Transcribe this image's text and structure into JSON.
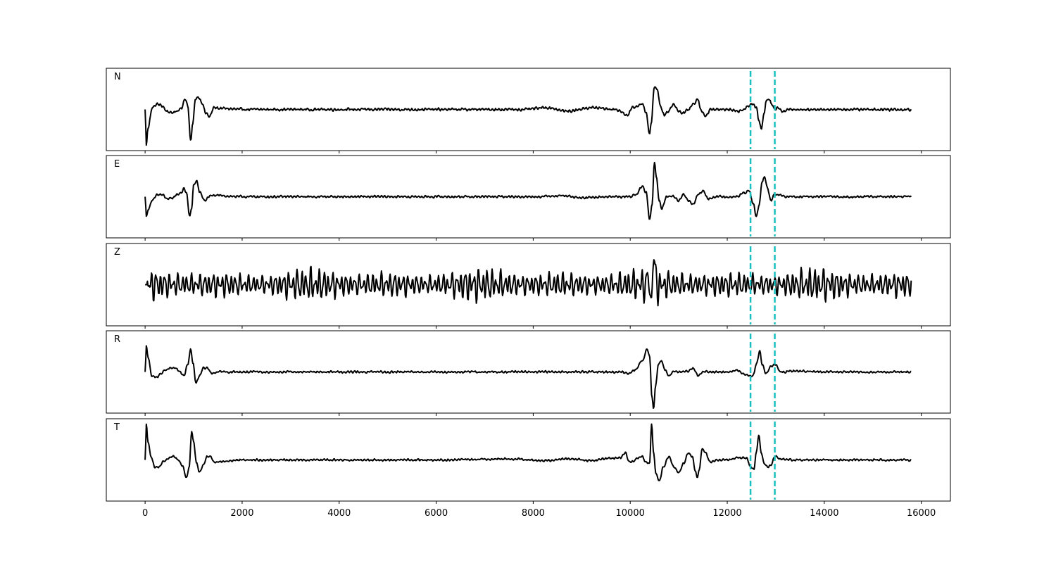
{
  "chart_data": {
    "type": "line",
    "layout": "stacked",
    "x_ticks": [
      0,
      2000,
      4000,
      6000,
      8000,
      10000,
      12000,
      14000,
      16000
    ],
    "x_tick_labels": [
      "0",
      "2000",
      "4000",
      "6000",
      "8000",
      "10000",
      "12000",
      "14000",
      "16000"
    ],
    "xlim": [
      -800,
      16600
    ],
    "x_end": 15800,
    "markers": {
      "color": "#1ABFBF",
      "style": "dashed",
      "x": [
        12480,
        12980
      ]
    },
    "line_color": "#000000",
    "panels": [
      {
        "name": "N",
        "ylim": [
          -1.15,
          1.15
        ],
        "points": [
          [
            0,
            0
          ],
          [
            25,
            -1.0
          ],
          [
            60,
            -0.5
          ],
          [
            150,
            0.05
          ],
          [
            250,
            0.15
          ],
          [
            350,
            0.1
          ],
          [
            450,
            -0.05
          ],
          [
            550,
            -0.1
          ],
          [
            650,
            -0.05
          ],
          [
            750,
            0.05
          ],
          [
            830,
            0.3
          ],
          [
            880,
            0.1
          ],
          [
            940,
            -0.9
          ],
          [
            980,
            -0.4
          ],
          [
            1040,
            0.3
          ],
          [
            1100,
            0.35
          ],
          [
            1170,
            0.2
          ],
          [
            1250,
            -0.1
          ],
          [
            1330,
            -0.2
          ],
          [
            1420,
            0.05
          ],
          [
            1550,
            0.03
          ],
          [
            2000,
            0
          ],
          [
            4000,
            0
          ],
          [
            6000,
            0
          ],
          [
            7800,
            0
          ],
          [
            8300,
            0.05
          ],
          [
            8700,
            -0.05
          ],
          [
            9200,
            0.05
          ],
          [
            9700,
            0
          ],
          [
            9950,
            -0.15
          ],
          [
            10050,
            0.05
          ],
          [
            10250,
            0.15
          ],
          [
            10330,
            -0.1
          ],
          [
            10400,
            -0.7
          ],
          [
            10430,
            -0.4
          ],
          [
            10500,
            0.65
          ],
          [
            10560,
            0.55
          ],
          [
            10620,
            0.1
          ],
          [
            10700,
            -0.15
          ],
          [
            10780,
            -0.05
          ],
          [
            10900,
            0.15
          ],
          [
            11000,
            -0.05
          ],
          [
            11100,
            -0.1
          ],
          [
            11200,
            0
          ],
          [
            11300,
            0.15
          ],
          [
            11400,
            0.3
          ],
          [
            11450,
            0
          ],
          [
            11550,
            -0.2
          ],
          [
            11650,
            0
          ],
          [
            12000,
            0
          ],
          [
            12200,
            -0.05
          ],
          [
            12320,
            0
          ],
          [
            12430,
            0.1
          ],
          [
            12520,
            0.15
          ],
          [
            12600,
            0.05
          ],
          [
            12650,
            -0.3
          ],
          [
            12700,
            -0.55
          ],
          [
            12760,
            -0.1
          ],
          [
            12800,
            0.25
          ],
          [
            12860,
            0.3
          ],
          [
            12920,
            0.15
          ],
          [
            12980,
            0
          ],
          [
            13050,
            0.05
          ],
          [
            13150,
            -0.05
          ],
          [
            13300,
            0
          ],
          [
            14000,
            0
          ],
          [
            15000,
            0
          ],
          [
            15800,
            0
          ]
        ],
        "noise_amplitude": 0.04
      },
      {
        "name": "E",
        "ylim": [
          -1.05,
          1.05
        ],
        "points": [
          [
            0,
            0
          ],
          [
            25,
            -0.5
          ],
          [
            70,
            -0.3
          ],
          [
            150,
            -0.1
          ],
          [
            250,
            0.05
          ],
          [
            350,
            0.05
          ],
          [
            450,
            -0.05
          ],
          [
            550,
            -0.05
          ],
          [
            650,
            0.05
          ],
          [
            740,
            0.1
          ],
          [
            800,
            0.2
          ],
          [
            850,
            0.1
          ],
          [
            920,
            -0.5
          ],
          [
            960,
            -0.3
          ],
          [
            1000,
            0.3
          ],
          [
            1060,
            0.4
          ],
          [
            1130,
            0.1
          ],
          [
            1230,
            -0.1
          ],
          [
            1330,
            0.02
          ],
          [
            1450,
            0.03
          ],
          [
            2000,
            0
          ],
          [
            4000,
            0
          ],
          [
            6000,
            0
          ],
          [
            8000,
            0
          ],
          [
            8600,
            0.03
          ],
          [
            9000,
            -0.03
          ],
          [
            9600,
            0
          ],
          [
            10000,
            0
          ],
          [
            10100,
            0.05
          ],
          [
            10250,
            0.25
          ],
          [
            10330,
            0.1
          ],
          [
            10400,
            -0.6
          ],
          [
            10450,
            -0.2
          ],
          [
            10500,
            0.9
          ],
          [
            10540,
            0.5
          ],
          [
            10600,
            -0.1
          ],
          [
            10650,
            -0.3
          ],
          [
            10750,
            0
          ],
          [
            10900,
            0
          ],
          [
            11000,
            -0.1
          ],
          [
            11100,
            0.05
          ],
          [
            11200,
            -0.1
          ],
          [
            11300,
            -0.2
          ],
          [
            11400,
            0.05
          ],
          [
            11500,
            0.15
          ],
          [
            11600,
            -0.05
          ],
          [
            11750,
            0
          ],
          [
            12000,
            0
          ],
          [
            12200,
            0
          ],
          [
            12350,
            0.1
          ],
          [
            12450,
            0.15
          ],
          [
            12540,
            -0.2
          ],
          [
            12600,
            -0.5
          ],
          [
            12660,
            -0.2
          ],
          [
            12720,
            0.4
          ],
          [
            12770,
            0.5
          ],
          [
            12830,
            0.2
          ],
          [
            12900,
            -0.1
          ],
          [
            12970,
            0.05
          ],
          [
            13050,
            0.05
          ],
          [
            13200,
            0
          ],
          [
            14000,
            0
          ],
          [
            15000,
            0
          ],
          [
            15800,
            0
          ]
        ],
        "noise_amplitude": 0.03
      },
      {
        "name": "Z",
        "ylim": [
          -1.1,
          1.1
        ],
        "points": [
          [
            0,
            0
          ],
          [
            10300,
            0
          ],
          [
            10390,
            0.15
          ],
          [
            10430,
            -0.65
          ],
          [
            10470,
            0.7
          ],
          [
            10520,
            0.3
          ],
          [
            10580,
            -0.1
          ],
          [
            10650,
            0
          ],
          [
            15800,
            0
          ]
        ],
        "noise_amplitude": 0.25
      },
      {
        "name": "R",
        "ylim": [
          -1.1,
          1.1
        ],
        "points": [
          [
            0,
            0
          ],
          [
            25,
            0.7
          ],
          [
            60,
            0.4
          ],
          [
            140,
            -0.1
          ],
          [
            230,
            -0.15
          ],
          [
            320,
            -0.05
          ],
          [
            420,
            0.05
          ],
          [
            520,
            0.1
          ],
          [
            620,
            0.1
          ],
          [
            720,
            0
          ],
          [
            800,
            -0.1
          ],
          [
            880,
            0.2
          ],
          [
            940,
            0.6
          ],
          [
            990,
            0.2
          ],
          [
            1050,
            -0.3
          ],
          [
            1120,
            -0.1
          ],
          [
            1200,
            0.1
          ],
          [
            1280,
            0.1
          ],
          [
            1380,
            -0.05
          ],
          [
            1500,
            0
          ],
          [
            2000,
            0
          ],
          [
            4000,
            0
          ],
          [
            6000,
            0
          ],
          [
            8000,
            0
          ],
          [
            9000,
            0
          ],
          [
            9800,
            0
          ],
          [
            9950,
            -0.05
          ],
          [
            10100,
            0.05
          ],
          [
            10250,
            0.3
          ],
          [
            10350,
            0.6
          ],
          [
            10400,
            0.4
          ],
          [
            10450,
            -0.7
          ],
          [
            10480,
            -1.0
          ],
          [
            10520,
            -0.4
          ],
          [
            10580,
            0.2
          ],
          [
            10640,
            0.3
          ],
          [
            10720,
            0.05
          ],
          [
            10800,
            -0.1
          ],
          [
            10900,
            0
          ],
          [
            11000,
            0
          ],
          [
            11150,
            0
          ],
          [
            11300,
            0.1
          ],
          [
            11400,
            -0.1
          ],
          [
            11500,
            0
          ],
          [
            11700,
            0
          ],
          [
            11900,
            0
          ],
          [
            12050,
            0
          ],
          [
            12200,
            0.05
          ],
          [
            12350,
            -0.05
          ],
          [
            12450,
            -0.1
          ],
          [
            12530,
            -0.1
          ],
          [
            12600,
            0.2
          ],
          [
            12670,
            0.55
          ],
          [
            12720,
            0.2
          ],
          [
            12800,
            -0.05
          ],
          [
            12900,
            0.15
          ],
          [
            12980,
            0.2
          ],
          [
            13100,
            0
          ],
          [
            13300,
            0.02
          ],
          [
            14000,
            0
          ],
          [
            15000,
            0
          ],
          [
            15800,
            0
          ]
        ],
        "noise_amplitude": 0.03
      },
      {
        "name": "T",
        "ylim": [
          -1.15,
          1.15
        ],
        "points": [
          [
            0,
            0
          ],
          [
            25,
            1.0
          ],
          [
            60,
            0.5
          ],
          [
            120,
            0.1
          ],
          [
            200,
            -0.2
          ],
          [
            280,
            -0.2
          ],
          [
            380,
            -0.05
          ],
          [
            480,
            0.05
          ],
          [
            580,
            0.1
          ],
          [
            680,
            0
          ],
          [
            780,
            -0.2
          ],
          [
            850,
            -0.5
          ],
          [
            910,
            -0.2
          ],
          [
            960,
            0.8
          ],
          [
            1000,
            0.5
          ],
          [
            1060,
            -0.1
          ],
          [
            1120,
            -0.35
          ],
          [
            1200,
            -0.15
          ],
          [
            1280,
            0.1
          ],
          [
            1350,
            0.1
          ],
          [
            1420,
            -0.05
          ],
          [
            1550,
            -0.05
          ],
          [
            2000,
            0
          ],
          [
            4000,
            0
          ],
          [
            6000,
            0
          ],
          [
            7600,
            0.03
          ],
          [
            8200,
            -0.02
          ],
          [
            8700,
            0.03
          ],
          [
            9200,
            -0.02
          ],
          [
            9600,
            0.05
          ],
          [
            9800,
            0.05
          ],
          [
            9900,
            0.2
          ],
          [
            9980,
            -0.05
          ],
          [
            10050,
            -0.05
          ],
          [
            10150,
            0.05
          ],
          [
            10250,
            0.1
          ],
          [
            10320,
            -0.05
          ],
          [
            10400,
            -0.1
          ],
          [
            10440,
            1.0
          ],
          [
            10480,
            0.2
          ],
          [
            10530,
            -0.4
          ],
          [
            10600,
            -0.6
          ],
          [
            10680,
            -0.2
          ],
          [
            10800,
            0.1
          ],
          [
            10900,
            -0.2
          ],
          [
            11000,
            -0.35
          ],
          [
            11100,
            -0.1
          ],
          [
            11200,
            0.2
          ],
          [
            11280,
            0.1
          ],
          [
            11340,
            -0.3
          ],
          [
            11380,
            -0.5
          ],
          [
            11420,
            -0.3
          ],
          [
            11480,
            0.3
          ],
          [
            11550,
            0.2
          ],
          [
            11650,
            -0.05
          ],
          [
            11800,
            0
          ],
          [
            12000,
            0
          ],
          [
            12200,
            0.05
          ],
          [
            12400,
            0.05
          ],
          [
            12480,
            -0.2
          ],
          [
            12550,
            -0.25
          ],
          [
            12600,
            0.2
          ],
          [
            12650,
            0.7
          ],
          [
            12700,
            0.2
          ],
          [
            12760,
            -0.1
          ],
          [
            12830,
            -0.2
          ],
          [
            12900,
            -0.15
          ],
          [
            12980,
            0.1
          ],
          [
            13100,
            0.03
          ],
          [
            13300,
            0
          ],
          [
            14000,
            0
          ],
          [
            15000,
            0
          ],
          [
            15800,
            0
          ]
        ],
        "noise_amplitude": 0.03
      }
    ]
  }
}
